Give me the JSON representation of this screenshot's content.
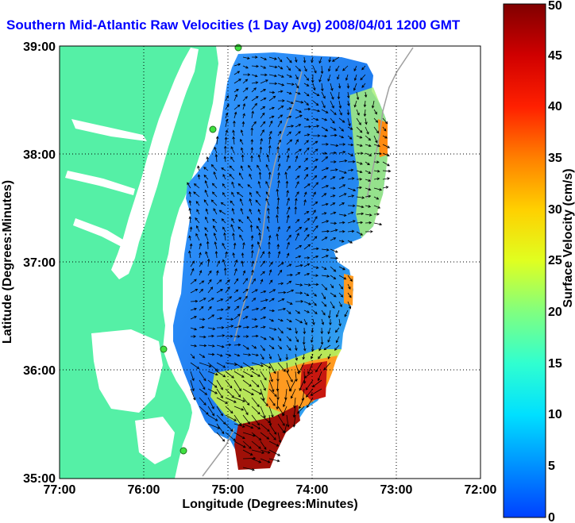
{
  "title": "Southern Mid-Atlantic Raw Velocities (1 Day Avg) 2008/04/01 1200 GMT",
  "xlabel": "Longitude (Degrees:Minutes)",
  "ylabel": "Latitude (Degrees:Minutes)",
  "colorbar_label": "Surface Velocity (cm/s)",
  "x_ticks": [
    "77:00",
    "76:00",
    "75:00",
    "74:00",
    "73:00",
    "72:00"
  ],
  "y_ticks": [
    "39:00",
    "38:00",
    "37:00",
    "36:00",
    "35:00"
  ],
  "colorbar_ticks": [
    "0",
    "5",
    "10",
    "15",
    "20",
    "25",
    "30",
    "35",
    "40",
    "45",
    "50"
  ],
  "colors": {
    "land": "#55f0a6",
    "water_bg": "#ffffff",
    "title": "#0000ff",
    "grid": "#000000",
    "bathymetry": "#a0a0a0"
  },
  "chart_data": {
    "type": "heatmap",
    "xlim_deg": [
      -77,
      -72
    ],
    "ylim_deg": [
      35,
      39
    ],
    "colorbar_range_cm_s": [
      0,
      50
    ],
    "grid": true,
    "legend_placement": "right"
  }
}
